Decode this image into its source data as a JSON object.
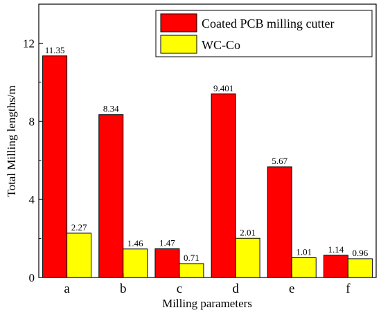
{
  "chart_data": {
    "type": "bar",
    "categories": [
      "a",
      "b",
      "c",
      "d",
      "e",
      "f"
    ],
    "series": [
      {
        "name": "Coated PCB milling cutter",
        "color": "#ff0000",
        "values": [
          11.35,
          8.34,
          1.47,
          9.401,
          5.67,
          1.14
        ],
        "labels": [
          "11.35",
          "8.34",
          "1.47",
          "9.401",
          "5.67",
          "1.14"
        ]
      },
      {
        "name": "WC-Co",
        "color": "#ffff00",
        "values": [
          2.27,
          1.46,
          0.71,
          2.01,
          1.01,
          0.96
        ],
        "labels": [
          "2.27",
          "1.46",
          "0.71",
          "2.01",
          "1.01",
          "0.96"
        ]
      }
    ],
    "xlabel": "Milling parameters",
    "ylabel": "Total Milling lengths/m",
    "ylim": [
      0,
      14
    ],
    "yticks": [
      0,
      4,
      8,
      12
    ],
    "grid": false,
    "legend_position": "top-right"
  }
}
